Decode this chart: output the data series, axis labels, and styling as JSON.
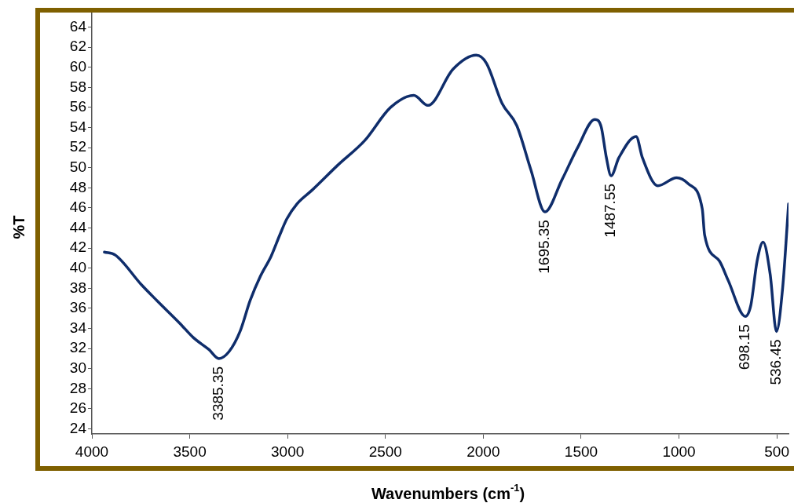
{
  "chart_data": {
    "type": "line",
    "xlabel": "Wavenumbers (cm$^{-1}$)",
    "ylabel": "%T",
    "xlim": [
      4000,
      440
    ],
    "ylim": [
      23.5,
      65.6
    ],
    "xticks": [
      4000,
      3500,
      3000,
      2500,
      2000,
      1500,
      1000,
      500
    ],
    "yticks": [
      24,
      26,
      28,
      30,
      32,
      34,
      36,
      38,
      40,
      42,
      44,
      46,
      48,
      50,
      52,
      54,
      56,
      58,
      60,
      62,
      64
    ],
    "grid": false,
    "legend": false,
    "marker": "none",
    "line_style": "solid",
    "series": [
      {
        "color": "#0f2d6b",
        "x": [
          3936,
          3880,
          3749,
          3669,
          3550,
          3482,
          3402,
          3351,
          3299,
          3243,
          3191,
          3139,
          3084,
          3040,
          3004,
          2952,
          2873,
          2741,
          2606,
          2474,
          2355,
          2283,
          2155,
          2036,
          1984,
          1904,
          1829,
          1757,
          1685,
          1598,
          1518,
          1430,
          1398,
          1371,
          1347,
          1307,
          1219,
          1187,
          1108,
          1012,
          952,
          881,
          869,
          793,
          749,
          661,
          633,
          601,
          570,
          534,
          502,
          470,
          440
        ],
        "values": [
          41.6,
          41.3,
          38.4,
          36.8,
          34.5,
          33.1,
          31.9,
          31.0,
          31.7,
          33.7,
          36.8,
          39.2,
          41.2,
          43.3,
          44.9,
          46.4,
          47.8,
          50.3,
          52.7,
          56.0,
          57.2,
          56.2,
          59.8,
          61.2,
          60.4,
          56.4,
          54.2,
          49.8,
          45.6,
          48.8,
          52.0,
          54.8,
          54.1,
          51.0,
          49.2,
          51.0,
          53.1,
          51.0,
          48.2,
          49.0,
          48.4,
          45.9,
          43.3,
          40.7,
          38.8,
          35.2,
          36.3,
          40.7,
          42.6,
          39.4,
          33.7,
          38.1,
          46.4
        ]
      }
    ],
    "annotations": [
      {
        "text": "3385.35",
        "x": 3351,
        "y": 31.0
      },
      {
        "text": "1695.35",
        "x": 1685,
        "y": 45.6
      },
      {
        "text": "1487.55",
        "x": 1347,
        "y": 49.2
      },
      {
        "text": "698.15",
        "x": 661,
        "y": 35.2
      },
      {
        "text": "536.45",
        "x": 502,
        "y": 33.7
      }
    ]
  }
}
